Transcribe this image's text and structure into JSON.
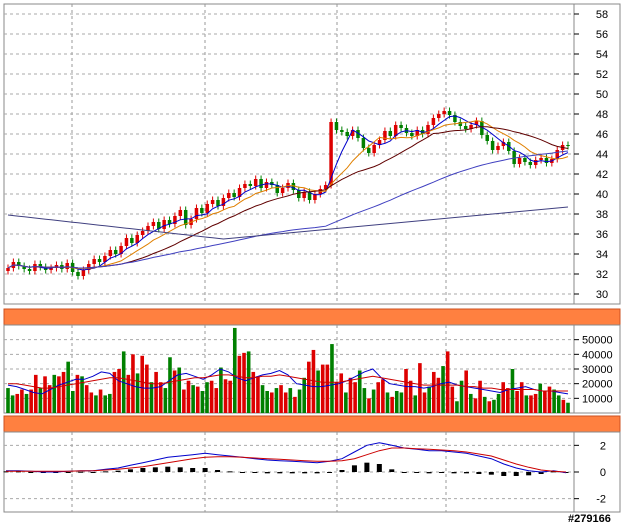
{
  "chart_data": [
    {
      "type": "candlestick",
      "panel": "price",
      "ylim": [
        29,
        59
      ],
      "yticks": [
        30,
        32,
        34,
        36,
        38,
        40,
        42,
        44,
        46,
        48,
        50,
        52,
        54,
        56,
        58
      ],
      "grid": true,
      "colors": {
        "up": "#dd0000",
        "down": "#008000",
        "ma_fast": "#0000cc",
        "ma_mid": "#e08000",
        "ma_slow": "#600000",
        "ma_long1": "#4040c0",
        "ma_long2": "#404080"
      },
      "closes": [
        32.6,
        33.2,
        32.8,
        32.5,
        32.3,
        33.0,
        32.7,
        32.4,
        32.6,
        32.9,
        32.5,
        33.1,
        32.2,
        31.8,
        32.4,
        33.0,
        33.5,
        33.2,
        33.8,
        34.4,
        34.0,
        34.8,
        35.6,
        35.1,
        35.9,
        36.3,
        36.8,
        37.2,
        36.5,
        37.4,
        37.0,
        37.8,
        38.4,
        36.9,
        37.5,
        38.6,
        38.1,
        39.0,
        39.4,
        38.8,
        39.6,
        40.1,
        39.7,
        40.6,
        41.0,
        40.8,
        41.5,
        40.6,
        41.2,
        40.9,
        40.1,
        40.6,
        41.1,
        40.4,
        39.6,
        40.2,
        39.4,
        40.0,
        40.5,
        40.9,
        47.2,
        46.4,
        46.2,
        45.8,
        46.4,
        45.6,
        44.6,
        44.1,
        44.9,
        45.4,
        46.3,
        45.8,
        46.9,
        46.6,
        46.1,
        45.8,
        46.4,
        46.0,
        46.9,
        47.6,
        48.0,
        48.3,
        47.9,
        47.2,
        46.8,
        46.5,
        46.9,
        47.3,
        45.9,
        45.3,
        44.4,
        44.8,
        45.2,
        44.3,
        43.0,
        43.6,
        43.2,
        42.9,
        43.4,
        43.6,
        43.1,
        43.5,
        44.4,
        44.9,
        44.8
      ]
    },
    {
      "type": "bar",
      "panel": "volume",
      "ylim": [
        0,
        60000
      ],
      "yticks": [
        10000,
        20000,
        30000,
        40000,
        50000
      ],
      "values": [
        17000,
        12000,
        13000,
        16000,
        13000,
        16000,
        26000,
        17000,
        25000,
        19000,
        26000,
        25000,
        28000,
        35000,
        15000,
        26000,
        25000,
        19000,
        14000,
        12000,
        16000,
        12000,
        13000,
        28000,
        30000,
        42000,
        26000,
        40000,
        27000,
        39000,
        33000,
        21000,
        28000,
        21000,
        17000,
        38000,
        29000,
        31000,
        16000,
        22000,
        19000,
        18000,
        15000,
        21000,
        22000,
        17000,
        31000,
        23000,
        22000,
        58000,
        39000,
        41000,
        42000,
        28000,
        25000,
        19000,
        15000,
        14000,
        17000,
        19000,
        14000,
        17000,
        11000,
        16000,
        24000,
        35000,
        43000,
        29000,
        33000,
        33000,
        47000,
        21000,
        27000,
        14000,
        24000,
        21000,
        29000,
        17000,
        10000,
        16000,
        21000,
        23000,
        14000,
        11000,
        15000,
        14000,
        30000,
        22000,
        12000,
        34000,
        14000,
        18000,
        28000,
        24000,
        32000,
        42000,
        18000,
        8000,
        22000,
        29000,
        13000,
        10000,
        22000,
        11000,
        8000,
        9000,
        13000,
        21000,
        17000,
        30000,
        15000,
        21000,
        12000,
        12000,
        13000,
        20000,
        15000,
        18000,
        16000,
        12000,
        9000,
        7000
      ],
      "ma_lines": [
        {
          "color": "#0000cc",
          "values": [
            19000,
            18000,
            16000,
            14000,
            13000,
            16000,
            19000,
            21000,
            23000,
            23000,
            25000,
            28000,
            27000,
            22000,
            20000,
            18000,
            17000,
            17000,
            18000,
            22000,
            26000,
            27000,
            25000,
            23000,
            26000,
            30000,
            28000,
            24000,
            22000,
            24000,
            26000,
            27000,
            29000,
            26000,
            20000,
            19000,
            18000,
            18000,
            19000,
            20000,
            22000,
            25000,
            28000,
            30000,
            24000,
            20000,
            19000,
            18000,
            18000,
            17000,
            18000,
            20000,
            21000,
            19000,
            18000,
            17000,
            16000,
            15000,
            14000,
            16000,
            17000,
            18000,
            16000,
            15000,
            15000,
            14000,
            13000
          ]
        },
        {
          "color": "#cc0000",
          "values": [
            20000,
            20000,
            19000,
            18000,
            17000,
            17000,
            18000,
            19000,
            20000,
            21000,
            22000,
            23000,
            24000,
            24000,
            23000,
            22000,
            21000,
            20000,
            20000,
            21000,
            22000,
            23000,
            24000,
            24000,
            25000,
            26000,
            26000,
            25000,
            24000,
            24000,
            25000,
            25000,
            26000,
            25000,
            24000,
            23000,
            22000,
            21000,
            21000,
            21000,
            22000,
            23000,
            24000,
            25000,
            24000,
            23000,
            22000,
            21000,
            20000,
            19000,
            19000,
            19000,
            19000,
            19000,
            18000,
            18000,
            17000,
            17000,
            16000,
            16000,
            16000,
            16000,
            16000,
            15000,
            15000,
            15000,
            15000
          ]
        }
      ]
    },
    {
      "type": "line",
      "panel": "macd",
      "ylim": [
        -3,
        3
      ],
      "yticks": [
        2,
        0,
        -2
      ],
      "series": [
        {
          "color": "#0000cc",
          "values": [
            0.1,
            0.1,
            0.05,
            0,
            0,
            0.05,
            0.1,
            0.1,
            0.2,
            0.3,
            0.5,
            0.7,
            0.9,
            1.1,
            1.2,
            1.3,
            1.4,
            1.3,
            1.2,
            1.1,
            1.0,
            0.9,
            0.85,
            0.8,
            0.75,
            0.7,
            0.8,
            1.0,
            1.5,
            2.0,
            2.2,
            2.0,
            1.8,
            1.7,
            1.6,
            1.6,
            1.5,
            1.4,
            1.2,
            1.0,
            0.6,
            0.3,
            0.1,
            0,
            0.1,
            -0.05
          ]
        },
        {
          "color": "#cc0000",
          "values": [
            0.05,
            0.05,
            0.05,
            0.05,
            0.05,
            0.05,
            0.08,
            0.1,
            0.15,
            0.2,
            0.3,
            0.4,
            0.55,
            0.7,
            0.85,
            1.0,
            1.1,
            1.15,
            1.15,
            1.1,
            1.05,
            1.0,
            0.95,
            0.9,
            0.85,
            0.8,
            0.8,
            0.85,
            1.0,
            1.3,
            1.6,
            1.8,
            1.8,
            1.75,
            1.7,
            1.65,
            1.6,
            1.5,
            1.35,
            1.2,
            0.9,
            0.6,
            0.35,
            0.15,
            0.05,
            0
          ]
        }
      ]
    }
  ],
  "watermark": "#279166"
}
